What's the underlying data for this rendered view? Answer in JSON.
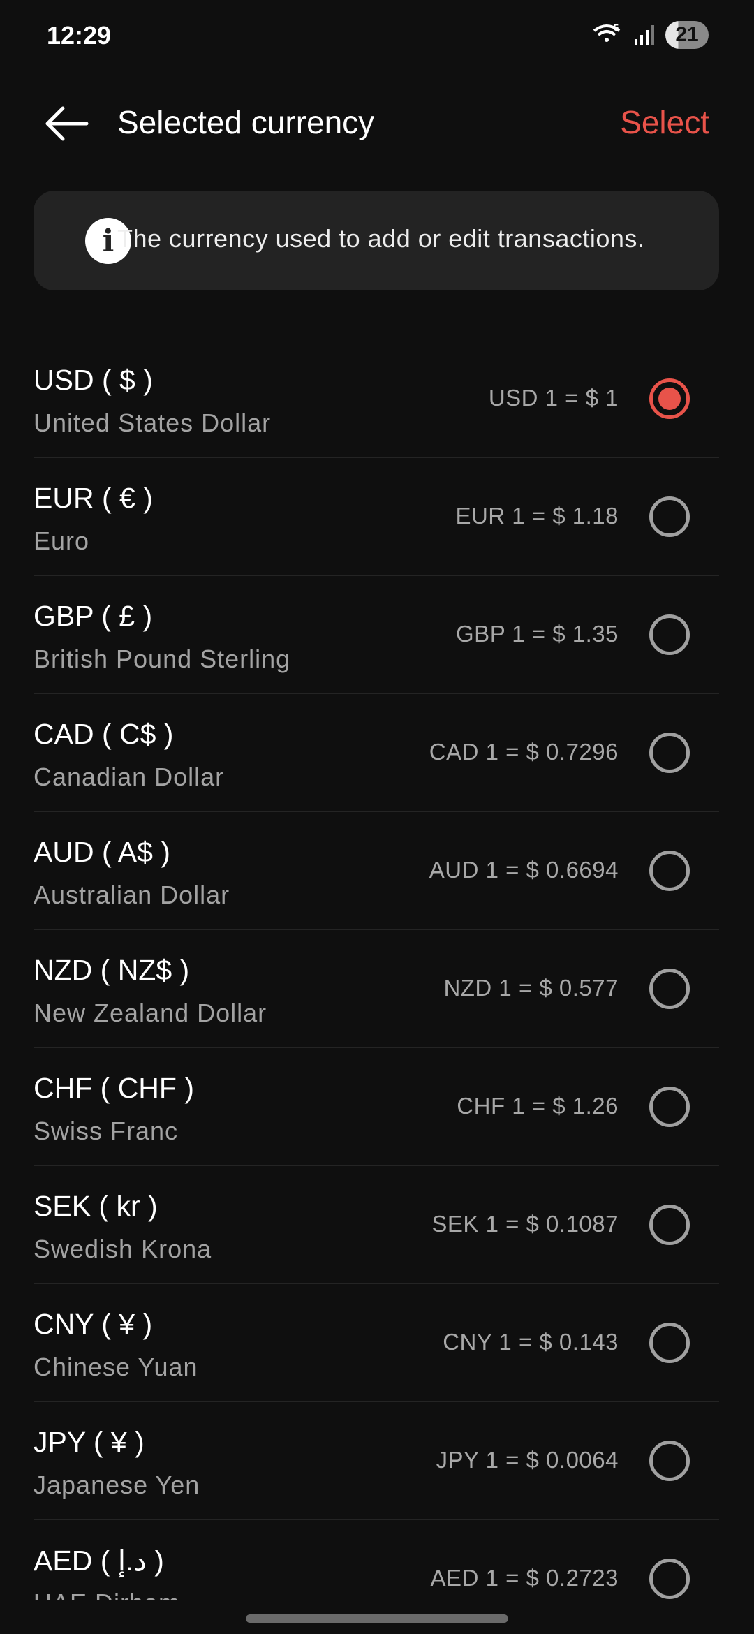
{
  "status_bar": {
    "time": "12:29",
    "battery": "21",
    "wifi_badge": "5",
    "icons": [
      "wifi-icon",
      "signal-icon",
      "battery-icon"
    ]
  },
  "header": {
    "title": "Selected currency",
    "select_label": "Select",
    "back_icon": "arrow-left-icon"
  },
  "info": {
    "icon": "info-icon",
    "text": "The currency used to add or edit transactions."
  },
  "accent_color": "#e8534a",
  "currencies": [
    {
      "code": "USD ( $ )",
      "name": "United States Dollar",
      "rate": "USD 1 = $ 1",
      "selected": true
    },
    {
      "code": "EUR ( € )",
      "name": "Euro",
      "rate": "EUR 1 = $ 1.18",
      "selected": false
    },
    {
      "code": "GBP ( £ )",
      "name": "British Pound Sterling",
      "rate": "GBP 1 = $ 1.35",
      "selected": false
    },
    {
      "code": "CAD ( C$ )",
      "name": "Canadian Dollar",
      "rate": "CAD 1 = $ 0.7296",
      "selected": false
    },
    {
      "code": "AUD ( A$ )",
      "name": "Australian Dollar",
      "rate": "AUD 1 = $ 0.6694",
      "selected": false
    },
    {
      "code": "NZD ( NZ$ )",
      "name": "New Zealand Dollar",
      "rate": "NZD 1 = $ 0.577",
      "selected": false
    },
    {
      "code": "CHF ( CHF )",
      "name": "Swiss Franc",
      "rate": "CHF 1 = $ 1.26",
      "selected": false
    },
    {
      "code": "SEK ( kr )",
      "name": "Swedish Krona",
      "rate": "SEK 1 = $ 0.1087",
      "selected": false
    },
    {
      "code": "CNY ( ¥ )",
      "name": "Chinese Yuan",
      "rate": "CNY 1 = $ 0.143",
      "selected": false
    },
    {
      "code": "JPY ( ¥ )",
      "name": "Japanese Yen",
      "rate": "JPY 1 = $ 0.0064",
      "selected": false
    },
    {
      "code": "AED ( د.إ )",
      "name": "UAE Dirham",
      "rate": "AED 1 = $ 0.2723",
      "selected": false
    }
  ]
}
